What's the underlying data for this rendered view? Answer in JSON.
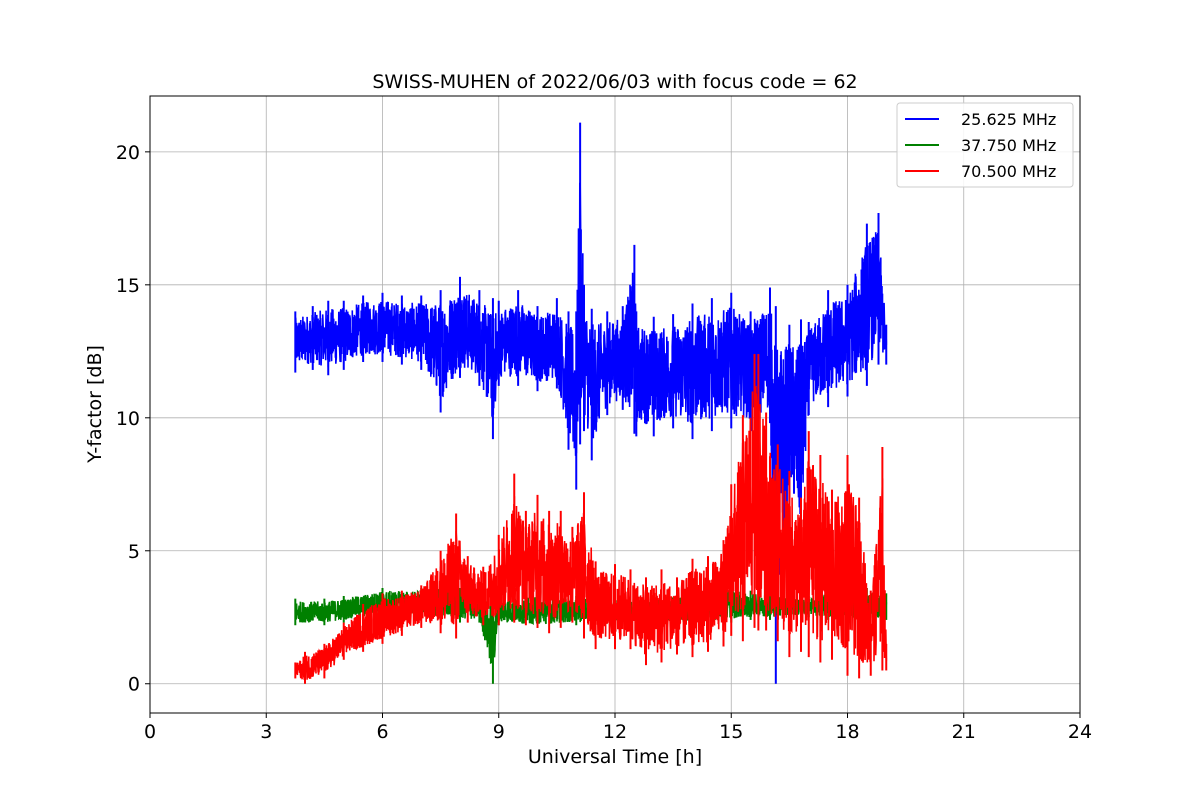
{
  "chart_data": {
    "type": "line",
    "title": "SWISS-MUHEN of 2022/06/03 with focus code = 62",
    "xlabel": "Universal Time [h]",
    "ylabel": "Y-factor [dB]",
    "xlim": [
      0,
      24
    ],
    "ylim": [
      -1.1,
      22.1
    ],
    "xticks": [
      0,
      3,
      6,
      9,
      12,
      15,
      18,
      21,
      24
    ],
    "yticks": [
      0,
      5,
      10,
      15,
      20
    ],
    "grid": true,
    "legend_position": "top-right",
    "series": [
      {
        "name": "25.625 MHz",
        "color": "#0000ff",
        "x": [
          3.75,
          4.2,
          4.6,
          5.0,
          5.5,
          6.0,
          6.5,
          7.0,
          7.5,
          8.0,
          8.5,
          8.85,
          9.0,
          9.5,
          10.0,
          10.5,
          10.8,
          11.0,
          11.1,
          11.2,
          11.4,
          11.8,
          12.2,
          12.5,
          12.55,
          13.0,
          13.5,
          14.0,
          14.5,
          15.0,
          15.5,
          16.0,
          16.15,
          16.5,
          16.8,
          17.0,
          17.5,
          18.0,
          18.5,
          18.8,
          19.0
        ],
        "lo": [
          11.7,
          11.8,
          11.6,
          11.8,
          12.1,
          12.1,
          12.0,
          11.8,
          10.2,
          11.5,
          11.2,
          9.2,
          11.2,
          11.2,
          11.0,
          11.1,
          8.8,
          7.3,
          9.0,
          9.5,
          8.4,
          10.1,
          10.3,
          9.4,
          9.3,
          9.3,
          9.6,
          9.2,
          9.5,
          9.6,
          9.5,
          9.8,
          0.0,
          6.8,
          4.5,
          10.1,
          10.4,
          10.8,
          11.2,
          12.0,
          12.0
        ],
        "hi": [
          14.0,
          14.2,
          14.4,
          14.4,
          14.6,
          14.7,
          14.6,
          14.6,
          14.8,
          15.3,
          14.8,
          14.5,
          14.4,
          14.8,
          14.2,
          14.5,
          14.0,
          14.0,
          21.1,
          15.0,
          14.1,
          14.0,
          14.2,
          16.5,
          14.0,
          13.8,
          13.9,
          14.3,
          14.5,
          14.7,
          14.0,
          14.9,
          14.2,
          13.5,
          13.7,
          13.6,
          14.8,
          15.0,
          17.3,
          17.7,
          13.5
        ]
      },
      {
        "name": "37.750 MHz",
        "color": "#008000",
        "x": [
          3.75,
          4.5,
          5.0,
          6.0,
          7.0,
          7.5,
          8.0,
          8.5,
          8.85,
          9.0,
          10.0,
          11.0,
          12.0,
          13.0,
          14.0,
          15.0,
          15.5,
          16.0,
          16.5,
          17.0,
          17.5,
          18.0,
          18.5,
          19.0
        ],
        "lo": [
          2.2,
          2.2,
          2.3,
          2.5,
          2.5,
          2.4,
          2.3,
          2.3,
          0.0,
          2.2,
          2.1,
          2.2,
          2.2,
          2.2,
          2.2,
          2.3,
          2.4,
          2.4,
          2.5,
          2.5,
          2.4,
          2.4,
          2.3,
          2.4
        ],
        "hi": [
          3.2,
          3.2,
          3.3,
          3.6,
          3.6,
          3.7,
          3.6,
          3.4,
          3.4,
          3.3,
          3.4,
          3.3,
          3.3,
          3.3,
          3.6,
          3.7,
          3.5,
          3.4,
          3.3,
          3.3,
          3.5,
          3.4,
          3.6,
          3.4
        ]
      },
      {
        "name": "70.500 MHz",
        "color": "#ff0000",
        "x": [
          3.75,
          4.0,
          4.5,
          5.0,
          5.5,
          6.0,
          6.5,
          7.0,
          7.5,
          7.9,
          8.2,
          8.6,
          9.0,
          9.4,
          9.7,
          10.0,
          10.3,
          10.6,
          10.9,
          11.2,
          11.5,
          12.0,
          12.4,
          12.8,
          13.2,
          13.6,
          14.0,
          14.4,
          14.8,
          15.0,
          15.3,
          15.6,
          15.7,
          15.9,
          16.2,
          16.5,
          16.8,
          17.0,
          17.3,
          17.6,
          18.0,
          18.3,
          18.6,
          18.9,
          19.0
        ],
        "lo": [
          0.2,
          0.0,
          0.2,
          0.9,
          1.2,
          1.5,
          1.8,
          2.1,
          1.9,
          1.7,
          2.3,
          2.2,
          2.2,
          2.3,
          2.2,
          2.1,
          1.9,
          2.1,
          2.3,
          1.7,
          1.3,
          1.3,
          1.3,
          0.7,
          0.8,
          1.1,
          1.0,
          1.2,
          1.4,
          1.8,
          1.6,
          2.1,
          2.0,
          2.0,
          1.6,
          1.0,
          1.2,
          1.0,
          0.8,
          0.9,
          0.3,
          0.2,
          0.3,
          0.5,
          0.5
        ],
        "hi": [
          0.8,
          1.2,
          1.5,
          2.3,
          3.0,
          3.4,
          3.5,
          3.7,
          5.0,
          6.4,
          4.8,
          4.4,
          5.6,
          7.9,
          6.5,
          7.1,
          6.5,
          6.5,
          5.9,
          7.2,
          4.6,
          4.5,
          4.3,
          4.0,
          4.3,
          4.0,
          4.7,
          4.8,
          5.4,
          7.5,
          10.1,
          12.4,
          12.4,
          10.2,
          9.0,
          8.0,
          7.0,
          9.5,
          8.6,
          7.3,
          8.6,
          7.0,
          3.5,
          8.9,
          1.5
        ]
      }
    ]
  }
}
